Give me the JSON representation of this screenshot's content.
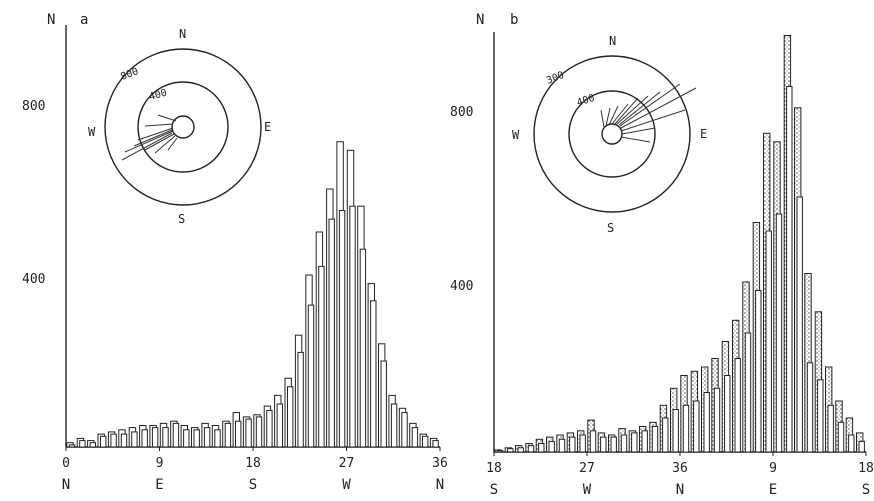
{
  "chart_data": [
    {
      "type": "bar",
      "panel_label": "a",
      "ylabel": "N",
      "yticks": [
        400,
        800
      ],
      "ylim": [
        0,
        1000
      ],
      "x_ticks": [
        {
          "value": 0,
          "label": "0",
          "dir": "N"
        },
        {
          "value": 9,
          "label": "9",
          "dir": "E"
        },
        {
          "value": 18,
          "label": "18",
          "dir": "S"
        },
        {
          "value": 27,
          "label": "27",
          "dir": "W"
        },
        {
          "value": 36,
          "label": "36",
          "dir": "N"
        }
      ],
      "x": [
        0.5,
        1.5,
        2.5,
        3.5,
        4.5,
        5.5,
        6.5,
        7.5,
        8.5,
        9.5,
        10.5,
        11.5,
        12.5,
        13.5,
        14.5,
        15.5,
        16.5,
        17.5,
        18.5,
        19.5,
        20.5,
        21.5,
        22.5,
        23.5,
        24.5,
        25.5,
        26.5,
        27.5,
        28.5,
        29.5,
        30.5,
        31.5,
        32.5,
        33.5,
        34.5,
        35.5
      ],
      "series": [
        {
          "values": [
            10,
            20,
            15,
            30,
            35,
            40,
            45,
            50,
            50,
            55,
            60,
            50,
            45,
            55,
            50,
            60,
            80,
            70,
            75,
            95,
            120,
            160,
            260,
            400,
            500,
            600,
            710,
            690,
            560,
            380,
            240,
            120,
            90,
            55,
            30,
            20
          ]
        },
        {
          "values": [
            5,
            15,
            10,
            25,
            30,
            30,
            35,
            40,
            45,
            45,
            55,
            40,
            40,
            45,
            40,
            55,
            60,
            65,
            70,
            85,
            100,
            140,
            220,
            330,
            420,
            530,
            550,
            560,
            460,
            340,
            200,
            100,
            80,
            45,
            25,
            15
          ]
        }
      ],
      "compass": {
        "north": "N",
        "east": "E",
        "south": "S",
        "west": "W",
        "ring_labels": [
          "800",
          "400"
        ]
      }
    },
    {
      "type": "bar",
      "panel_label": "b",
      "ylabel": "N",
      "yticks": [
        400,
        800
      ],
      "ylim": [
        0,
        1000
      ],
      "x_ticks": [
        {
          "value": 0,
          "label": "18",
          "dir": "S"
        },
        {
          "value": 9,
          "label": "27",
          "dir": "W"
        },
        {
          "value": 18,
          "label": "36",
          "dir": "N"
        },
        {
          "value": 27,
          "label": "9",
          "dir": "E"
        },
        {
          "value": 36,
          "label": "18",
          "dir": "S"
        }
      ],
      "x": [
        0.5,
        1.5,
        2.5,
        3.5,
        4.5,
        5.5,
        6.5,
        7.5,
        8.5,
        9.5,
        10.5,
        11.5,
        12.5,
        13.5,
        14.5,
        15.5,
        16.5,
        17.5,
        18.5,
        19.5,
        20.5,
        21.5,
        22.5,
        23.5,
        24.5,
        25.5,
        26.5,
        27.5,
        28.5,
        29.5,
        30.5,
        31.5,
        32.5,
        33.5,
        34.5,
        35.5
      ],
      "series": [
        {
          "values": [
            5,
            10,
            15,
            20,
            30,
            35,
            40,
            45,
            50,
            75,
            45,
            40,
            55,
            50,
            60,
            70,
            110,
            150,
            180,
            190,
            200,
            220,
            260,
            310,
            400,
            540,
            750,
            730,
            980,
            810,
            420,
            330,
            200,
            120,
            80,
            45
          ]
        },
        {
          "values": [
            3,
            8,
            10,
            15,
            20,
            25,
            30,
            35,
            40,
            50,
            35,
            35,
            40,
            45,
            50,
            60,
            80,
            100,
            110,
            120,
            140,
            150,
            180,
            220,
            280,
            380,
            520,
            560,
            860,
            600,
            210,
            170,
            110,
            70,
            40,
            25
          ]
        }
      ],
      "compass": {
        "north": "N",
        "east": "E",
        "south": "S",
        "west": "W",
        "ring_labels": [
          "300",
          "400"
        ]
      }
    }
  ]
}
